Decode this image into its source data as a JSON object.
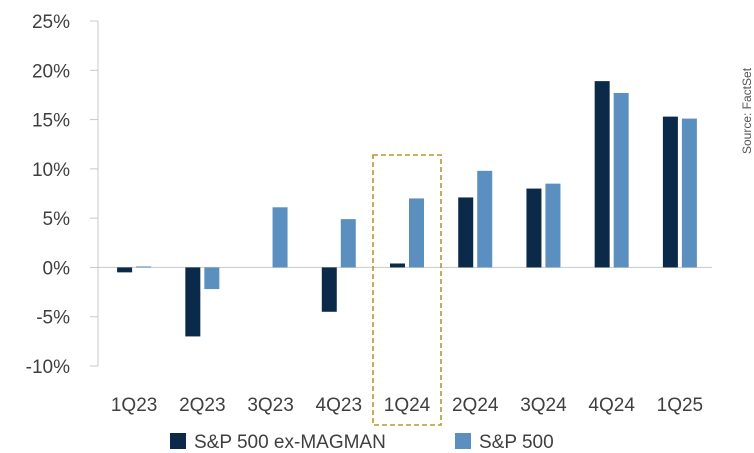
{
  "chart_data": {
    "type": "bar",
    "categories": [
      "1Q23",
      "2Q23",
      "3Q23",
      "4Q23",
      "1Q24",
      "2Q24",
      "3Q24",
      "4Q24",
      "1Q25"
    ],
    "series": [
      {
        "name": "S&P 500 ex-MAGMAN",
        "color": "#0b2a4a",
        "values": [
          -0.5,
          -7.0,
          0.0,
          -4.5,
          0.4,
          7.1,
          8.0,
          18.9,
          15.3
        ]
      },
      {
        "name": "S&P 500",
        "color": "#5b8fbf",
        "values": [
          0.1,
          -2.2,
          6.1,
          4.9,
          7.0,
          9.8,
          8.5,
          17.7,
          15.1
        ]
      }
    ],
    "ylim": [
      -10,
      25
    ],
    "yticks": [
      -10,
      -5,
      0,
      5,
      10,
      15,
      20,
      25
    ],
    "ytick_labels": [
      "-10%",
      "-5%",
      "0%",
      "5%",
      "10%",
      "15%",
      "20%",
      "25%"
    ],
    "highlight_category": "1Q24",
    "highlight_color": "#b8962e",
    "legend_position": "bottom",
    "source_note": "Source: FactSet"
  }
}
